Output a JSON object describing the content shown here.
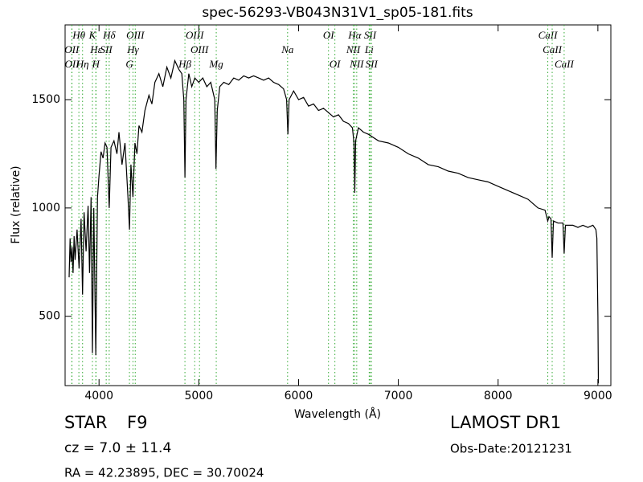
{
  "chart_data": {
    "type": "line",
    "title": "spec-56293-VB043N31V1_sp05-181.fits",
    "x_label": "Wavelength (Å)",
    "y_label": "Flux (relative)",
    "color": "#000000",
    "line_color": "#33aa33",
    "xlim": [
      3660,
      9130
    ],
    "ylim": [
      180,
      1845
    ],
    "xticks": [
      4000,
      5000,
      6000,
      7000,
      8000,
      9000
    ],
    "yticks": [
      500,
      1000,
      1500
    ],
    "grid": false,
    "x": [
      3700,
      3710,
      3720,
      3730,
      3740,
      3750,
      3760,
      3780,
      3800,
      3820,
      3835,
      3850,
      3870,
      3890,
      3905,
      3920,
      3934,
      3948,
      3968,
      3985,
      4000,
      4020,
      4040,
      4060,
      4080,
      4102,
      4120,
      4150,
      4180,
      4200,
      4230,
      4260,
      4290,
      4305,
      4320,
      4340,
      4360,
      4380,
      4400,
      4430,
      4460,
      4500,
      4530,
      4560,
      4600,
      4640,
      4680,
      4720,
      4760,
      4800,
      4830,
      4850,
      4861,
      4872,
      4900,
      4930,
      4960,
      5000,
      5040,
      5080,
      5120,
      5160,
      5172,
      5185,
      5210,
      5250,
      5300,
      5350,
      5400,
      5450,
      5500,
      5550,
      5600,
      5650,
      5700,
      5750,
      5800,
      5850,
      5880,
      5893,
      5905,
      5950,
      6000,
      6050,
      6100,
      6150,
      6200,
      6250,
      6300,
      6350,
      6400,
      6450,
      6500,
      6540,
      6555,
      6563,
      6572,
      6600,
      6650,
      6700,
      6800,
      6900,
      7000,
      7100,
      7200,
      7300,
      7400,
      7500,
      7600,
      7700,
      7800,
      7900,
      8000,
      8100,
      8200,
      8300,
      8400,
      8470,
      8498,
      8510,
      8530,
      8542,
      8555,
      8600,
      8650,
      8662,
      8675,
      8750,
      8800,
      8850,
      8900,
      8950,
      8980,
      8990,
      9000,
      9005
    ],
    "values": [
      680,
      860,
      750,
      820,
      700,
      870,
      760,
      900,
      720,
      950,
      600,
      980,
      800,
      1010,
      700,
      1050,
      330,
      1000,
      320,
      1050,
      1150,
      1260,
      1230,
      1300,
      1280,
      1000,
      1280,
      1310,
      1250,
      1350,
      1200,
      1300,
      1050,
      900,
      1200,
      1050,
      1300,
      1250,
      1380,
      1350,
      1450,
      1520,
      1480,
      1580,
      1620,
      1560,
      1650,
      1600,
      1680,
      1640,
      1620,
      1500,
      1140,
      1500,
      1620,
      1560,
      1600,
      1580,
      1600,
      1560,
      1580,
      1500,
      1180,
      1450,
      1560,
      1580,
      1570,
      1600,
      1590,
      1610,
      1600,
      1610,
      1600,
      1590,
      1600,
      1580,
      1570,
      1550,
      1500,
      1340,
      1500,
      1540,
      1500,
      1510,
      1470,
      1480,
      1450,
      1460,
      1440,
      1420,
      1430,
      1400,
      1390,
      1370,
      1300,
      1070,
      1310,
      1370,
      1350,
      1340,
      1310,
      1300,
      1280,
      1250,
      1230,
      1200,
      1190,
      1170,
      1160,
      1140,
      1130,
      1120,
      1100,
      1080,
      1060,
      1040,
      1000,
      990,
      940,
      960,
      950,
      770,
      940,
      930,
      930,
      790,
      920,
      920,
      910,
      920,
      910,
      920,
      900,
      860,
      500,
      190
    ],
    "line_labels": [
      [
        {
          "label": "Hθ",
          "x": 3798
        },
        {
          "label": "K",
          "x": 3934
        },
        {
          "label": "Hδ",
          "x": 4102
        },
        {
          "label": "OIII",
          "x": 4363
        },
        {
          "label": "OIII",
          "x": 4959
        },
        {
          "label": "OI",
          "x": 6300
        },
        {
          "label": "Hα",
          "x": 6563
        },
        {
          "label": "SII",
          "x": 6717
        },
        {
          "label": "CaII",
          "x": 8498
        }
      ],
      [
        {
          "label": "OII",
          "x": 3727
        },
        {
          "label": "Hε",
          "x": 3970
        },
        {
          "label": "SII",
          "x": 4072
        },
        {
          "label": "Hγ",
          "x": 4340
        },
        {
          "label": "OIII",
          "x": 5007
        },
        {
          "label": "Na",
          "x": 5890
        },
        {
          "label": "NII",
          "x": 6548
        },
        {
          "label": "Li",
          "x": 6708
        },
        {
          "label": "CaII",
          "x": 8542
        }
      ],
      [
        {
          "label": "OII",
          "x": 3729
        },
        {
          "label": "Hη",
          "x": 3835
        },
        {
          "label": "H",
          "x": 3968
        },
        {
          "label": "G",
          "x": 4305
        },
        {
          "label": "Hβ",
          "x": 4861
        },
        {
          "label": "Mg",
          "x": 5175
        },
        {
          "label": "OI",
          "x": 6364
        },
        {
          "label": "NII",
          "x": 6583
        },
        {
          "label": "SII",
          "x": 6731
        },
        {
          "label": "CaII",
          "x": 8662
        }
      ]
    ]
  },
  "footer": {
    "class": "STAR",
    "subclass": "F9",
    "cz": "cz = 7.0 ± 11.4",
    "coords": "RA = 42.23895, DEC = 30.70024",
    "release": "LAMOST DR1",
    "obs_date": "Obs-Date:20121231"
  }
}
